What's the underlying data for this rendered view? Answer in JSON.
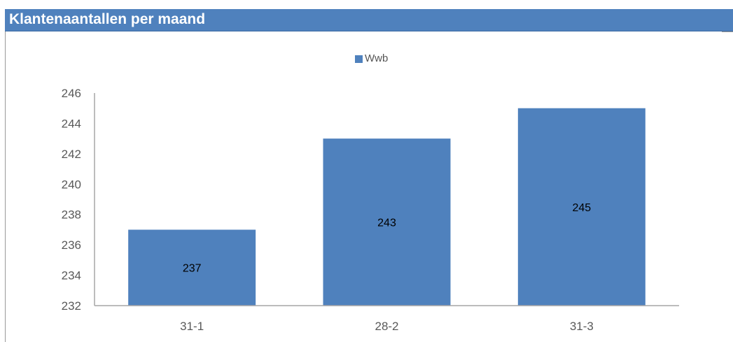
{
  "title": "Klantenaantallen per maand",
  "colors": {
    "title_bar": "#4f81bd",
    "title_text": "#ffffff",
    "bar": "#4f81bd",
    "axis": "#a6a6a6",
    "tick_text": "#595959",
    "data_label": "#000000"
  },
  "chart_data": {
    "type": "bar",
    "categories": [
      "31-1",
      "28-2",
      "31-3"
    ],
    "series": [
      {
        "name": "Wwb",
        "values": [
          237,
          243,
          245
        ]
      }
    ],
    "data_labels": [
      "237",
      "243",
      "245"
    ],
    "ylim": [
      232,
      246
    ],
    "yticks": [
      232,
      234,
      236,
      238,
      240,
      242,
      244,
      246
    ],
    "grid": false,
    "legend": "top-center"
  }
}
